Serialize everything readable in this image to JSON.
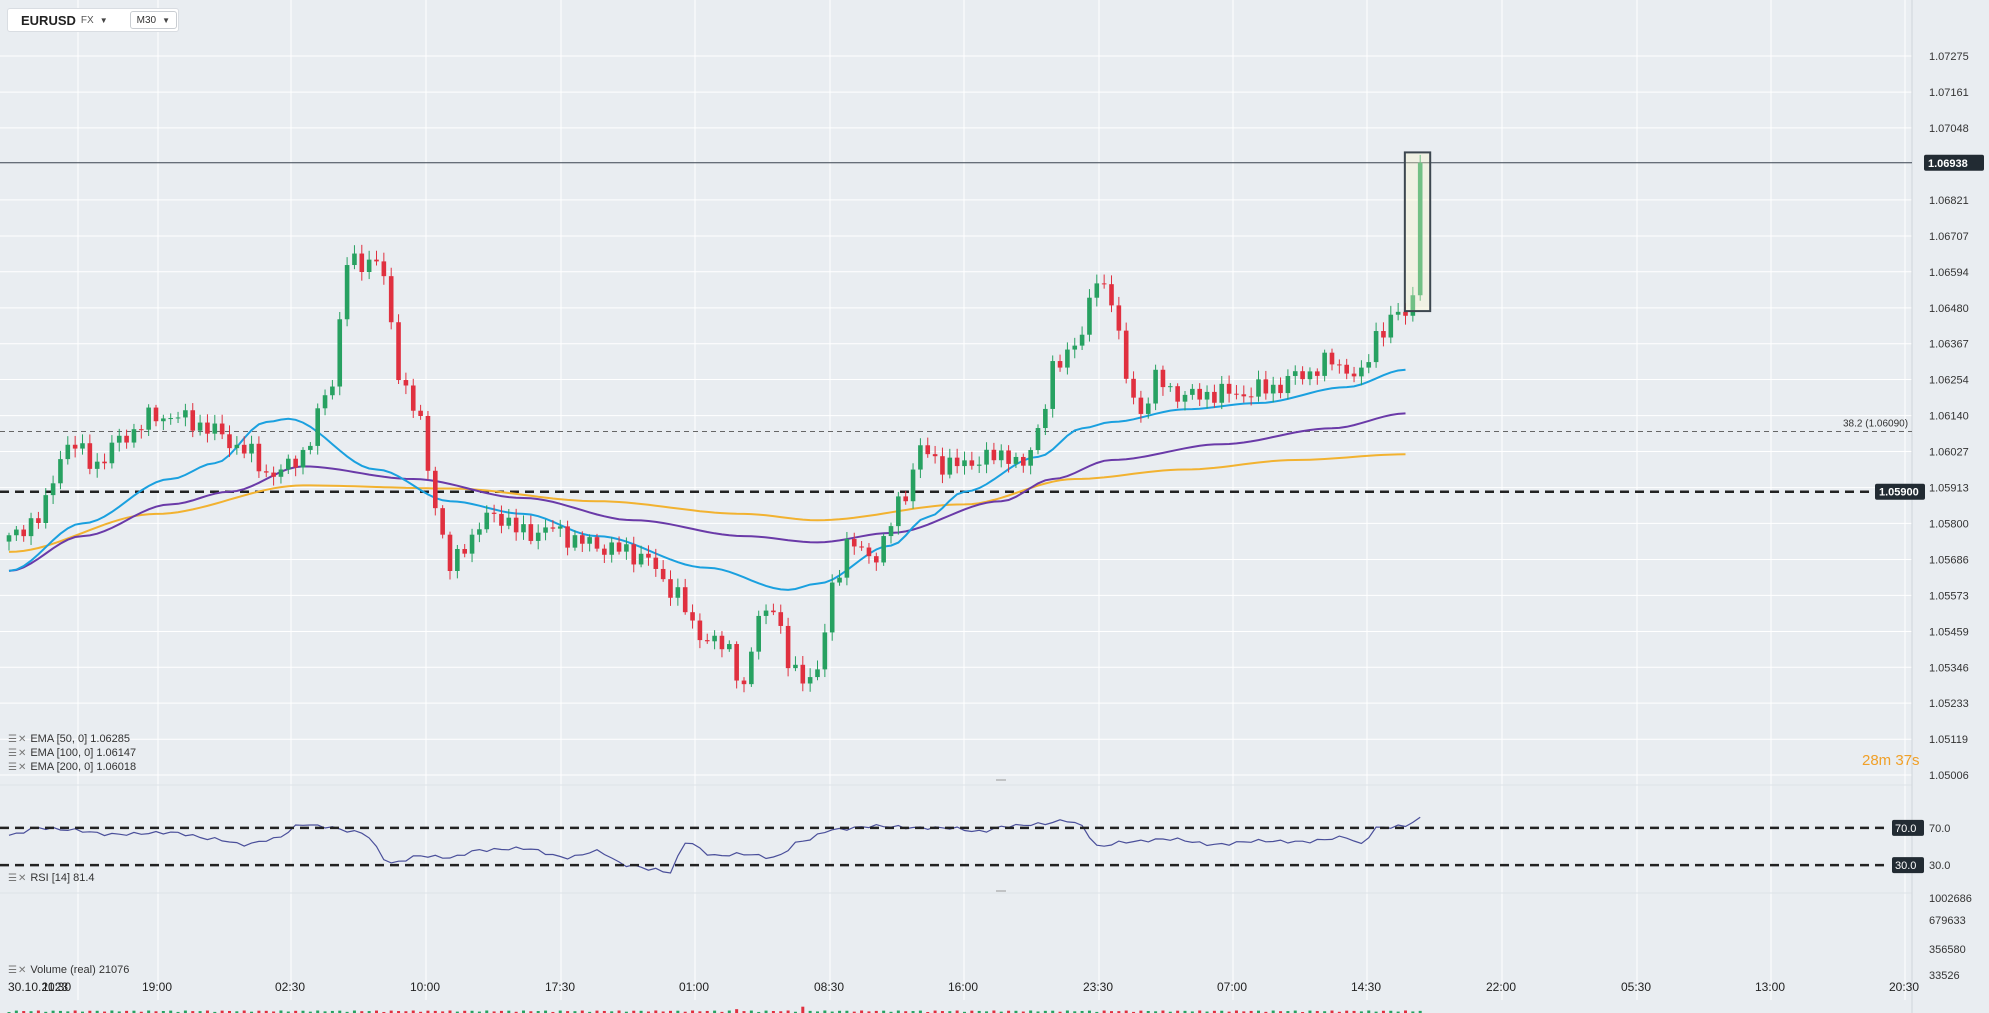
{
  "symbol": {
    "name": "EURUSD",
    "market": "FX",
    "timeframe": "M30"
  },
  "indicators": [
    {
      "label": "EMA [50, 0] 1.06285",
      "color": "#1aa0df"
    },
    {
      "label": "EMA [100, 0] 1.06147",
      "color": "#6a3aa8"
    },
    {
      "label": "EMA [200, 0] 1.06018",
      "color": "#f2b230"
    }
  ],
  "rsi": {
    "label": "RSI [14] 81.4",
    "levels": [
      70,
      30
    ],
    "level_labels": [
      "70.0",
      "30.0"
    ],
    "ticks": [
      "70.0",
      "30.0"
    ]
  },
  "volume": {
    "label": "Volume (real) 21076",
    "ticks": [
      "1002686",
      "679633",
      "356580",
      "33526"
    ]
  },
  "countdown": "28m 37s",
  "colors": {
    "up": "#27a161",
    "down": "#e0303f",
    "bg": "#e9edf1",
    "grid": "#ffffff"
  },
  "chart_data": {
    "type": "candlestick",
    "y_ticks": [
      "1.07275",
      "1.07161",
      "1.07048",
      "1.06821",
      "1.06707",
      "1.06594",
      "1.06480",
      "1.06367",
      "1.06254",
      "1.06140",
      "1.06027",
      "1.05913",
      "1.05800",
      "1.05686",
      "1.05573",
      "1.05459",
      "1.05346",
      "1.05233",
      "1.05119",
      "1.05006"
    ],
    "y_range": [
      1.05006,
      1.07275
    ],
    "x_ticks": [
      "30.10.2023",
      "11:30",
      "19:00",
      "02:30",
      "10:00",
      "17:30",
      "01:00",
      "08:30",
      "16:00",
      "23:30",
      "07:00",
      "14:30",
      "22:00",
      "05:30",
      "13:00",
      "20:30"
    ],
    "current_price": 1.06938,
    "current_price_label": "1.06938",
    "support_level": 1.059,
    "support_label": "1.05900",
    "fib_level": 1.0609,
    "fib_label": "38.2 (1.06090)",
    "close_anchors": [
      [
        0,
        1.0575
      ],
      [
        4,
        1.0582
      ],
      [
        8,
        1.0605
      ],
      [
        12,
        1.0599
      ],
      [
        16,
        1.0608
      ],
      [
        20,
        1.0614
      ],
      [
        24,
        1.0613
      ],
      [
        28,
        1.0609
      ],
      [
        32,
        1.0603
      ],
      [
        36,
        1.0595
      ],
      [
        40,
        1.0602
      ],
      [
        44,
        1.0625
      ],
      [
        46,
        1.0662
      ],
      [
        50,
        1.0663
      ],
      [
        54,
        1.0622
      ],
      [
        56,
        1.0611
      ],
      [
        58,
        1.0586
      ],
      [
        60,
        1.0565
      ],
      [
        62,
        1.0574
      ],
      [
        66,
        1.0583
      ],
      [
        70,
        1.0577
      ],
      [
        74,
        1.0578
      ],
      [
        78,
        1.0574
      ],
      [
        82,
        1.0572
      ],
      [
        86,
        1.057
      ],
      [
        90,
        1.056
      ],
      [
        94,
        1.0545
      ],
      [
        98,
        1.054
      ],
      [
        100,
        1.0528
      ],
      [
        102,
        1.055
      ],
      [
        104,
        1.0555
      ],
      [
        106,
        1.0535
      ],
      [
        108,
        1.0532
      ],
      [
        110,
        1.0532
      ],
      [
        112,
        1.056
      ],
      [
        114,
        1.0573
      ],
      [
        118,
        1.057
      ],
      [
        122,
        1.059
      ],
      [
        124,
        1.0603
      ],
      [
        128,
        1.0598
      ],
      [
        132,
        1.06
      ],
      [
        136,
        1.0602
      ],
      [
        138,
        1.0597
      ],
      [
        140,
        1.061
      ],
      [
        142,
        1.0628
      ],
      [
        146,
        1.064
      ],
      [
        148,
        1.0657
      ],
      [
        150,
        1.0652
      ],
      [
        152,
        1.0625
      ],
      [
        154,
        1.0615
      ],
      [
        156,
        1.0625
      ],
      [
        160,
        1.062
      ],
      [
        164,
        1.0621
      ],
      [
        168,
        1.0621
      ],
      [
        172,
        1.0623
      ],
      [
        176,
        1.0627
      ],
      [
        180,
        1.0631
      ],
      [
        184,
        1.0626
      ],
      [
        186,
        1.064
      ],
      [
        190,
        1.0647
      ],
      [
        191,
        1.065
      ],
      [
        192,
        1.06938
      ]
    ],
    "ema50_anchors": [
      [
        0,
        1.0565
      ],
      [
        10,
        1.058
      ],
      [
        22,
        1.0594
      ],
      [
        28,
        1.0599
      ],
      [
        35,
        1.0612
      ],
      [
        38,
        1.0613
      ],
      [
        50,
        1.0597
      ],
      [
        60,
        1.0587
      ],
      [
        70,
        1.0583
      ],
      [
        80,
        1.0576
      ],
      [
        95,
        1.0566
      ],
      [
        106,
        1.0559
      ],
      [
        110,
        1.0561
      ],
      [
        120,
        1.0573
      ],
      [
        125,
        1.0582
      ],
      [
        130,
        1.059
      ],
      [
        140,
        1.0601
      ],
      [
        146,
        1.061
      ],
      [
        150,
        1.0612
      ],
      [
        160,
        1.0616
      ],
      [
        170,
        1.0618
      ],
      [
        182,
        1.0623
      ],
      [
        190,
        1.06285
      ]
    ],
    "ema100_anchors": [
      [
        0,
        1.0565
      ],
      [
        10,
        1.0576
      ],
      [
        22,
        1.0586
      ],
      [
        30,
        1.059
      ],
      [
        40,
        1.0598
      ],
      [
        55,
        1.0594
      ],
      [
        70,
        1.0588
      ],
      [
        85,
        1.0581
      ],
      [
        100,
        1.0576
      ],
      [
        110,
        1.0574
      ],
      [
        120,
        1.0577
      ],
      [
        135,
        1.0587
      ],
      [
        142,
        1.0594
      ],
      [
        150,
        1.06
      ],
      [
        165,
        1.0605
      ],
      [
        180,
        1.061
      ],
      [
        190,
        1.06147
      ]
    ],
    "ema200_anchors": [
      [
        0,
        1.0571
      ],
      [
        20,
        1.0583
      ],
      [
        40,
        1.0592
      ],
      [
        60,
        1.0591
      ],
      [
        80,
        1.0587
      ],
      [
        100,
        1.0583
      ],
      [
        110,
        1.0581
      ],
      [
        130,
        1.0586
      ],
      [
        145,
        1.0594
      ],
      [
        160,
        1.0597
      ],
      [
        175,
        1.06
      ],
      [
        190,
        1.06018
      ]
    ],
    "rsi_anchors": [
      [
        0,
        62
      ],
      [
        4,
        70
      ],
      [
        8,
        68
      ],
      [
        14,
        63
      ],
      [
        22,
        65
      ],
      [
        28,
        58
      ],
      [
        32,
        52
      ],
      [
        36,
        58
      ],
      [
        40,
        74
      ],
      [
        42,
        72
      ],
      [
        48,
        65
      ],
      [
        52,
        32
      ],
      [
        56,
        40
      ],
      [
        60,
        38
      ],
      [
        64,
        46
      ],
      [
        70,
        48
      ],
      [
        76,
        38
      ],
      [
        80,
        45
      ],
      [
        84,
        30
      ],
      [
        88,
        25
      ],
      [
        90,
        22
      ],
      [
        92,
        55
      ],
      [
        96,
        40
      ],
      [
        100,
        42
      ],
      [
        104,
        38
      ],
      [
        108,
        56
      ],
      [
        112,
        68
      ],
      [
        118,
        72
      ],
      [
        124,
        70
      ],
      [
        128,
        70
      ],
      [
        132,
        66
      ],
      [
        136,
        72
      ],
      [
        140,
        74
      ],
      [
        144,
        78
      ],
      [
        146,
        72
      ],
      [
        148,
        50
      ],
      [
        152,
        55
      ],
      [
        158,
        58
      ],
      [
        164,
        52
      ],
      [
        170,
        56
      ],
      [
        176,
        55
      ],
      [
        182,
        60
      ],
      [
        184,
        52
      ],
      [
        186,
        70
      ],
      [
        190,
        72
      ],
      [
        192,
        81.4
      ]
    ]
  }
}
